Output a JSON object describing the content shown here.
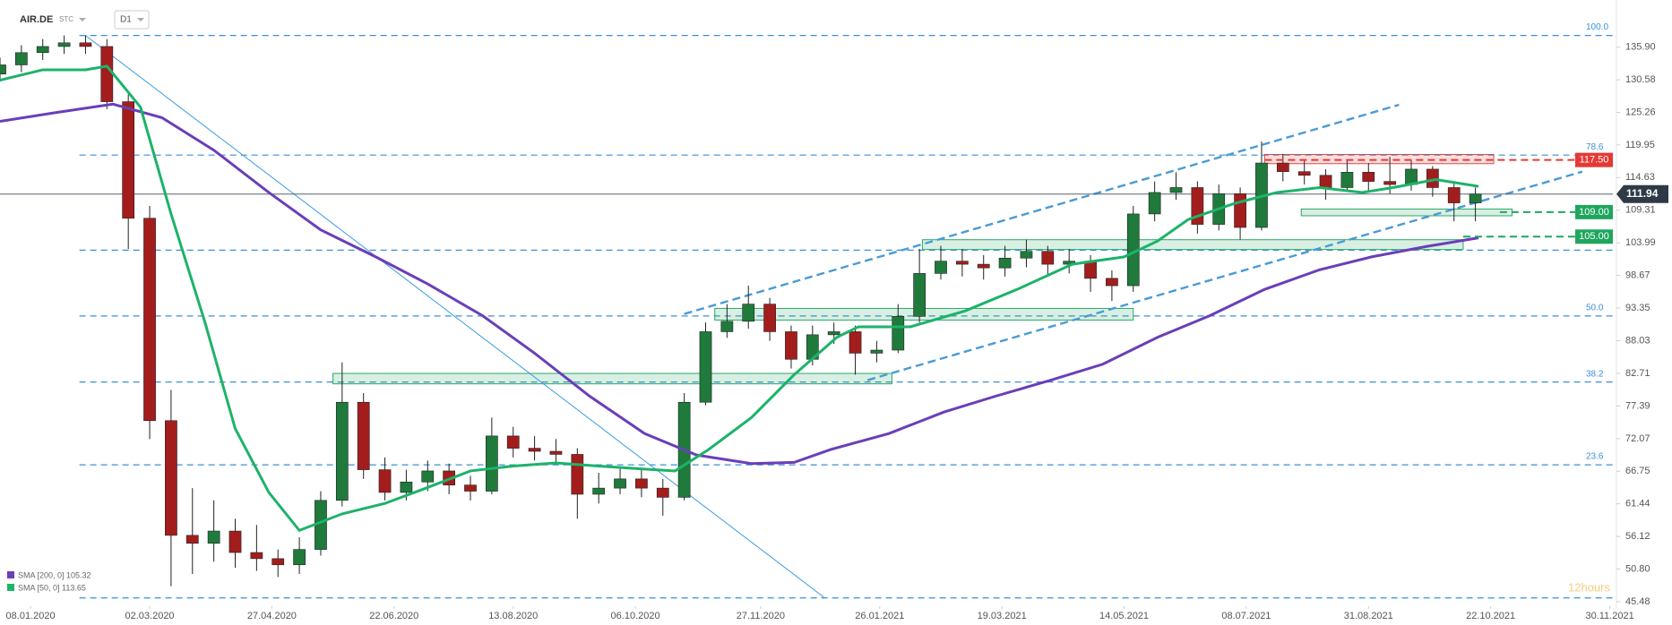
{
  "chart_data": {
    "type": "candlestick",
    "symbol": "AIR.DE",
    "source": "STC",
    "timeframe": "D1",
    "watermark": "12hours",
    "xlim": [
      0,
      528
    ],
    "ylim": [
      45.04,
      143.58
    ],
    "xticks": [
      {
        "value": 10,
        "label": "08.01.2020"
      },
      {
        "value": 49,
        "label": "02.03.2020"
      },
      {
        "value": 89,
        "label": "27.04.2020"
      },
      {
        "value": 129,
        "label": "22.06.2020"
      },
      {
        "value": 168,
        "label": "13.08.2020"
      },
      {
        "value": 208,
        "label": "06.10.2020"
      },
      {
        "value": 249,
        "label": "27.11.2020"
      },
      {
        "value": 288,
        "label": "26.01.2021"
      },
      {
        "value": 328,
        "label": "19.03.2021"
      },
      {
        "value": 368,
        "label": "14.05.2021"
      },
      {
        "value": 408,
        "label": "08.07.2021"
      },
      {
        "value": 448,
        "label": "31.08.2021"
      },
      {
        "value": 488,
        "label": "22.10.2021"
      },
      {
        "value": 527,
        "label": "30.11.2021"
      }
    ],
    "yticks": [
      {
        "value": 135.9,
        "label": "135.90"
      },
      130.58,
      125.26,
      119.95,
      114.63,
      109.31,
      103.99,
      98.67,
      93.35,
      88.03,
      82.71,
      77.39,
      72.07,
      66.75,
      61.44,
      56.12,
      {
        "value": 50.8,
        "label": "50.80"
      },
      45.48
    ],
    "up_color": "#1f7a3c",
    "down_color": "#a31d1d",
    "x": [
      0,
      7,
      14,
      21,
      28,
      35,
      42,
      49,
      56,
      63,
      70,
      77,
      84,
      91,
      98,
      105,
      112,
      119,
      126,
      133,
      140,
      147,
      154,
      161,
      168,
      175,
      182,
      189,
      196,
      203,
      210,
      217,
      224,
      231,
      238,
      245,
      252,
      259,
      266,
      273,
      280,
      287,
      294,
      301,
      308,
      315,
      322,
      329,
      336,
      343,
      350,
      357,
      364,
      371,
      378,
      385,
      392,
      399,
      406,
      413,
      420,
      427,
      434,
      441,
      448,
      455,
      462,
      469,
      476,
      483
    ],
    "open": [
      131.5,
      133,
      135,
      136,
      136.6,
      136,
      127,
      108,
      75,
      56.3,
      55,
      57,
      53.5,
      52.5,
      51.5,
      54,
      62,
      78,
      67,
      63.3,
      65,
      66.8,
      64.5,
      63.5,
      72.5,
      70.5,
      70,
      69.5,
      63,
      64,
      65.5,
      64,
      62.5,
      78,
      89.5,
      91.2,
      94,
      89.5,
      85,
      89,
      89.5,
      86,
      86.5,
      92,
      99,
      101,
      100.5,
      99.9,
      101.5,
      102.6,
      100.5,
      101,
      98.2,
      97,
      108.7,
      112.2,
      113,
      107,
      112,
      106.5,
      117,
      115.6,
      115,
      113,
      115.5,
      114,
      113.5,
      116,
      113,
      110.5
    ],
    "high": [
      134.2,
      136.2,
      137.2,
      137.8,
      137.8,
      137.2,
      128.2,
      110,
      80,
      64,
      62,
      59,
      58,
      54,
      56,
      63.5,
      84.5,
      79.5,
      69,
      67,
      68.5,
      68,
      66,
      75.5,
      74,
      72.5,
      72,
      70.5,
      66.5,
      67.5,
      67,
      65.5,
      79.5,
      91,
      94,
      97,
      95,
      90.5,
      90.5,
      91,
      90.5,
      88,
      94,
      103,
      103.5,
      103,
      102,
      103.5,
      104.5,
      103.5,
      103,
      102,
      99.5,
      110,
      114,
      115.5,
      114,
      113.5,
      113,
      120.5,
      118.5,
      117.5,
      116,
      117.5,
      117,
      118,
      117.5,
      116.5,
      114,
      113
    ],
    "low": [
      130.3,
      131.8,
      133.8,
      134.8,
      134.8,
      125.8,
      103,
      72,
      48,
      50,
      52,
      51,
      50.5,
      49.5,
      50,
      53,
      61,
      65.5,
      62,
      62,
      63.5,
      63,
      62,
      63,
      69,
      68.5,
      68,
      59,
      61.5,
      63,
      62.5,
      59.5,
      62,
      77.5,
      88.5,
      90,
      88,
      83.5,
      84,
      87.5,
      82.5,
      84.5,
      86,
      91,
      98,
      98.5,
      98,
      98.5,
      100,
      98.5,
      99,
      96,
      94.5,
      96,
      107.5,
      111,
      105.5,
      106,
      104.5,
      106,
      114,
      113.5,
      111,
      112.5,
      112.5,
      112,
      112.5,
      111.5,
      107.5,
      107.5
    ],
    "close": [
      133,
      135,
      136,
      136.6,
      136,
      127,
      108,
      75,
      56.3,
      55,
      57,
      53.5,
      52.5,
      51.5,
      54,
      62,
      78,
      67,
      63.3,
      65,
      66.8,
      64.5,
      63.5,
      72.5,
      70.5,
      70,
      69.5,
      63,
      64,
      65.5,
      64,
      62.5,
      78,
      89.5,
      91.2,
      94,
      89.5,
      85,
      89,
      89.5,
      86,
      86.5,
      92,
      99,
      101,
      100.5,
      99.9,
      101.5,
      102.6,
      100.5,
      101,
      98.2,
      97,
      108.7,
      112.2,
      113,
      107,
      112,
      106.5,
      117,
      115.6,
      115,
      113,
      115.5,
      114,
      113.5,
      116,
      113,
      110.5,
      111.94
    ],
    "series": [
      {
        "name": "SMA [200, 0] 105.32",
        "color": "#6a3fb8",
        "x": [
          0,
          18,
          37,
          53,
          70,
          88,
          105,
          123,
          140,
          158,
          175,
          193,
          211,
          228,
          246,
          260,
          272,
          291,
          309,
          326,
          344,
          361,
          379,
          396,
          414,
          432,
          449,
          467,
          484
        ],
        "values": [
          123.8,
          125.2,
          126.6,
          124.4,
          119.1,
          112.2,
          106.1,
          101.7,
          97.3,
          92.1,
          86.0,
          79.0,
          72.9,
          69.4,
          68.0,
          68.2,
          70.3,
          72.9,
          76.4,
          79.0,
          81.6,
          84.2,
          88.6,
          92.1,
          96.4,
          99.6,
          101.7,
          103.4,
          104.8
        ]
      },
      {
        "name": "SMA [50, 0] 113.65",
        "color": "#1cb36a",
        "x": [
          0,
          14,
          28,
          35,
          46,
          56,
          67,
          77,
          88,
          98,
          112,
          126,
          140,
          154,
          168,
          182,
          196,
          211,
          221,
          232,
          246,
          260,
          274,
          281,
          298,
          316,
          333,
          351,
          368,
          379,
          389,
          404,
          418,
          432,
          446,
          456,
          470,
          484
        ],
        "values": [
          130.5,
          132.2,
          132.2,
          132.8,
          126.1,
          108.7,
          91.2,
          73.7,
          63.3,
          57.1,
          59.8,
          61.5,
          64.1,
          66.8,
          67.6,
          68.1,
          67.6,
          67.1,
          66.8,
          70.3,
          75.5,
          82.5,
          88.6,
          90.3,
          90.3,
          92.9,
          96.4,
          100.5,
          101.7,
          104.3,
          107.8,
          110.4,
          112.2,
          113.0,
          112.2,
          113.0,
          114.3,
          113.2
        ]
      }
    ],
    "fib_x_start": 26,
    "fib_levels": [
      137.8,
      118.3,
      102.8,
      92.07,
      81.3,
      67.8,
      46.1
    ],
    "fib_labels": [
      "100.0",
      "78.6",
      null,
      "50.0",
      "38.2",
      "23.6",
      null
    ],
    "fib_color": "#3b8fd9",
    "zones": [
      {
        "x": [
          109,
          292
        ],
        "y": [
          81.0,
          82.7
        ],
        "color": "#2aa866"
      },
      {
        "x": [
          234,
          371
        ],
        "y": [
          91.4,
          93.3
        ],
        "color": "#2aa866"
      },
      {
        "x": [
          302,
          479
        ],
        "y": [
          102.9,
          104.5
        ],
        "color": "#2aa866"
      },
      {
        "x": [
          426,
          495
        ],
        "y": [
          108.4,
          109.5
        ],
        "color": "#2aa866"
      },
      {
        "x": [
          414,
          489
        ],
        "y": [
          116.9,
          118.4
        ],
        "color": "#e04848"
      }
    ],
    "trendlines": [
      {
        "x": [
          28,
          270
        ],
        "y": [
          137.8,
          46.1
        ],
        "color": "#3b9be0",
        "dashed": false
      },
      {
        "x": [
          224,
          458
        ],
        "y": [
          92.4,
          126.5
        ],
        "color": "#4a9bd4",
        "dashed": true
      },
      {
        "x": [
          284,
          518
        ],
        "y": [
          81.6,
          115.6
        ],
        "color": "#4a9bd4",
        "dashed": true
      }
    ],
    "price_levels": [
      {
        "value": 117.5,
        "label": "117.50",
        "color": "#e53935",
        "x_start": 414
      },
      {
        "value": 109,
        "label": "109.00",
        "color": "#1fa65e",
        "x_start": 491
      },
      {
        "value": 105,
        "label": "105.00",
        "color": "#1fa65e",
        "x_start": 479
      }
    ],
    "last_price": {
      "value": 111.94,
      "label": "111.94"
    }
  }
}
